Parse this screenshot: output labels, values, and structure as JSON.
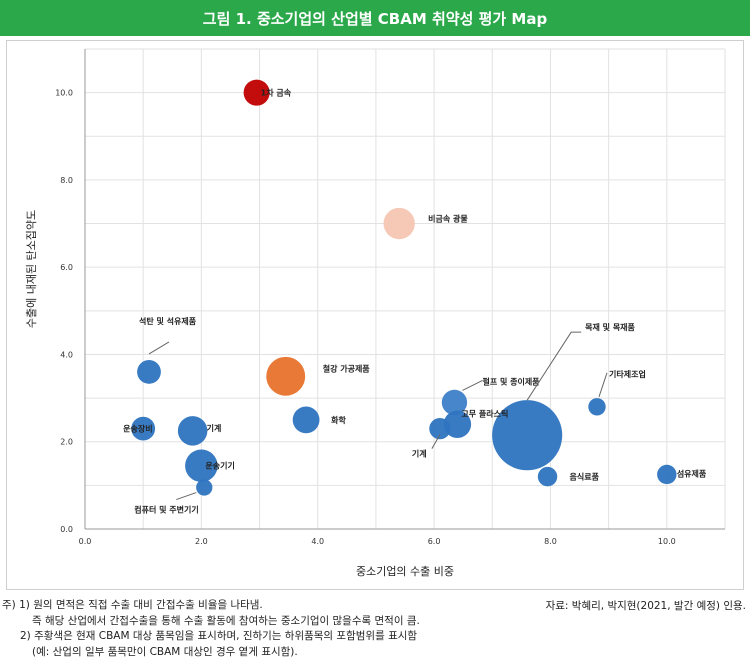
{
  "title": "그림 1. 중소기업의 산업별 CBAM 취약성 평가 Map",
  "chart_data": {
    "type": "bubble",
    "xlabel": "중소기업의 수출 비중",
    "ylabel": "수출에 내재된 탄소집약도",
    "xlim": [
      0,
      11
    ],
    "ylim": [
      0,
      11
    ],
    "xticks": [
      "0.0",
      "2.0",
      "4.0",
      "6.0",
      "8.0",
      "10.0"
    ],
    "yticks": [
      "0.0",
      "2.0",
      "4.0",
      "6.0",
      "8.0",
      "10.0"
    ],
    "grid": true,
    "points": [
      {
        "label": "1차 금속",
        "x": 2.95,
        "y": 10.0,
        "size": 0.9,
        "color": "#c00000"
      },
      {
        "label": "비금속 광물",
        "x": 5.4,
        "y": 7.0,
        "size": 1.3,
        "color": "#f5c6b2"
      },
      {
        "label": "석탄 및 석유제품",
        "x": 1.1,
        "y": 3.6,
        "size": 0.75,
        "color": "#2e74c0"
      },
      {
        "label": "철강 가공제품",
        "x": 3.45,
        "y": 3.5,
        "size": 2.0,
        "color": "#e8722c"
      },
      {
        "label": "화학",
        "x": 3.8,
        "y": 2.5,
        "size": 0.95,
        "color": "#2e74c0"
      },
      {
        "label": "운송장비",
        "x": 1.0,
        "y": 2.3,
        "size": 0.75,
        "color": "#2e74c0"
      },
      {
        "label": "기계",
        "x": 1.85,
        "y": 2.25,
        "size": 1.15,
        "color": "#2e74c0"
      },
      {
        "label": "운송기기",
        "x": 2.0,
        "y": 1.45,
        "size": 1.4,
        "color": "#2e74c0"
      },
      {
        "label": "컴퓨터 및 주변기기",
        "x": 2.05,
        "y": 0.95,
        "size": 0.35,
        "color": "#2e74c0"
      },
      {
        "label": "펄프 및 종이제품",
        "x": 6.35,
        "y": 2.9,
        "size": 0.85,
        "color": "#3d80c8"
      },
      {
        "label": "고무 플라스틱",
        "x": 6.4,
        "y": 2.4,
        "size": 1.0,
        "color": "#2e74c0"
      },
      {
        "label": "기계",
        "x": 6.1,
        "y": 2.3,
        "size": 0.6,
        "color": "#2e74c0"
      },
      {
        "label": "목재 및 목재품",
        "x": 7.6,
        "y": 2.15,
        "size": 6.5,
        "color": "#2e74c0"
      },
      {
        "label": "기타제조업",
        "x": 8.8,
        "y": 2.8,
        "size": 0.4,
        "color": "#2e74c0"
      },
      {
        "label": "음식료품",
        "x": 7.95,
        "y": 1.2,
        "size": 0.5,
        "color": "#2e74c0"
      },
      {
        "label": "섬유제품",
        "x": 10.0,
        "y": 1.25,
        "size": 0.5,
        "color": "#2e74c0"
      }
    ]
  },
  "notes": [
    "주) 1) 원의 면적은 직접 수출 대비 간접수출 비율을 나타냄.",
    "즉 해당 산업에서 간접수출을 통해 수출 활동에 참여하는 중소기업이 많을수록 면적이 큼.",
    "2) 주황색은 현재 CBAM 대상 품목임을 표시하며, 진하기는 하위품목의 포함범위를 표시함",
    "(예: 산업의 일부 품목만이 CBAM 대상인 경우 옅게 표시함)."
  ],
  "source": "자료: 박혜리, 박지현(2021, 발간 예정) 인용."
}
